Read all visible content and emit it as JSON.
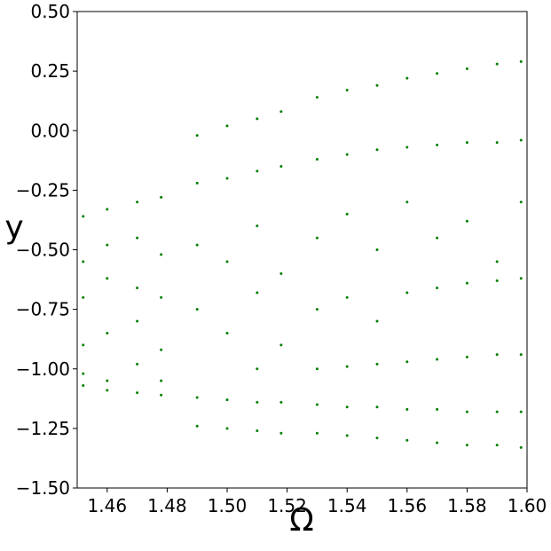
{
  "chart_data": {
    "type": "scatter",
    "x_label": "Ω",
    "y_label": "y",
    "xlim": [
      1.45,
      1.6
    ],
    "ylim": [
      -1.5,
      0.5
    ],
    "xticks": [
      1.46,
      1.48,
      {
        "value": 1.5,
        "label": "1.50"
      },
      1.52,
      1.54,
      1.56,
      1.58,
      {
        "value": 1.6,
        "label": "1.60"
      }
    ],
    "yticks": [
      {
        "value": 0.5,
        "label": "0.50"
      },
      0.25,
      {
        "value": 0,
        "label": "0.00"
      },
      {
        "value": -0.25,
        "label": "−0.25"
      },
      {
        "value": -0.5,
        "label": "−0.50"
      },
      {
        "value": -0.75,
        "label": "−0.75"
      },
      {
        "value": -1,
        "label": "−1.00"
      },
      {
        "value": -1.25,
        "label": "−1.25"
      },
      {
        "value": -1.5,
        "label": "−1.50"
      }
    ],
    "color": "#008000",
    "x": [
      1.452,
      1.452,
      1.452,
      1.452,
      1.452,
      1.452,
      1.46,
      1.46,
      1.46,
      1.46,
      1.46,
      1.46,
      1.47,
      1.47,
      1.47,
      1.47,
      1.47,
      1.47,
      1.478,
      1.478,
      1.478,
      1.478,
      1.478,
      1.478,
      1.49,
      1.49,
      1.49,
      1.49,
      1.49,
      1.49,
      1.5,
      1.5,
      1.5,
      1.5,
      1.5,
      1.5,
      1.51,
      1.51,
      1.51,
      1.51,
      1.51,
      1.51,
      1.51,
      1.518,
      1.518,
      1.518,
      1.518,
      1.518,
      1.518,
      1.53,
      1.53,
      1.53,
      1.53,
      1.53,
      1.53,
      1.53,
      1.54,
      1.54,
      1.54,
      1.54,
      1.54,
      1.54,
      1.54,
      1.55,
      1.55,
      1.55,
      1.55,
      1.55,
      1.55,
      1.55,
      1.56,
      1.56,
      1.56,
      1.56,
      1.56,
      1.56,
      1.56,
      1.57,
      1.57,
      1.57,
      1.57,
      1.57,
      1.57,
      1.57,
      1.58,
      1.58,
      1.58,
      1.58,
      1.58,
      1.58,
      1.58,
      1.59,
      1.59,
      1.59,
      1.59,
      1.59,
      1.59,
      1.59,
      1.598,
      1.598,
      1.598,
      1.598,
      1.598,
      1.598,
      1.598
    ],
    "y": [
      -0.36,
      -0.55,
      -0.7,
      -0.9,
      -1.02,
      -1.07,
      -0.33,
      -0.48,
      -0.62,
      -0.85,
      -1.05,
      -1.09,
      -0.3,
      -0.45,
      -0.66,
      -0.8,
      -0.98,
      -1.1,
      -0.28,
      -0.52,
      -0.7,
      -0.92,
      -1.05,
      -1.11,
      -0.02,
      -0.22,
      -0.48,
      -0.75,
      -1.12,
      -1.24,
      0.02,
      -0.2,
      -0.55,
      -0.85,
      -1.13,
      -1.25,
      0.05,
      -0.17,
      -0.4,
      -0.68,
      -1.0,
      -1.14,
      -1.26,
      0.08,
      -0.15,
      -0.6,
      -0.9,
      -1.14,
      -1.27,
      0.14,
      -0.12,
      -0.45,
      -0.75,
      -1.0,
      -1.15,
      -1.27,
      0.17,
      -0.1,
      -0.35,
      -0.7,
      -0.99,
      -1.16,
      -1.28,
      0.19,
      -0.08,
      -0.5,
      -0.8,
      -0.98,
      -1.16,
      -1.29,
      0.22,
      -0.07,
      -0.3,
      -0.68,
      -0.97,
      -1.17,
      -1.3,
      0.24,
      -0.06,
      -0.45,
      -0.66,
      -0.96,
      -1.17,
      -1.31,
      0.26,
      -0.05,
      -0.38,
      -0.64,
      -0.95,
      -1.18,
      -1.32,
      0.28,
      -0.05,
      -0.55,
      -0.63,
      -0.94,
      -1.18,
      -1.32,
      0.29,
      -0.04,
      -0.3,
      -0.62,
      -0.94,
      -1.18,
      -1.33
    ]
  }
}
